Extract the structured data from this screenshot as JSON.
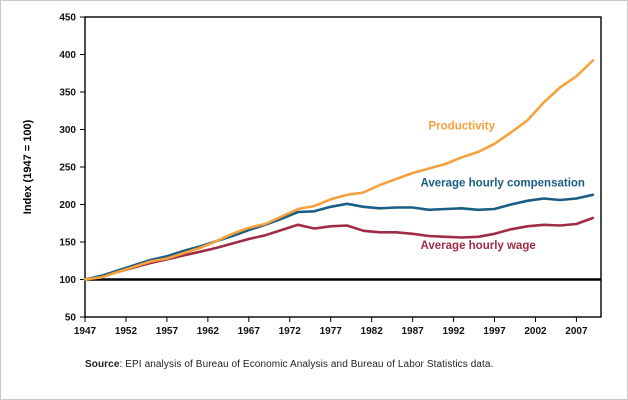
{
  "chart_data": {
    "type": "line",
    "title": "",
    "ylabel": "Index (1947 = 100)",
    "ylim": [
      50,
      450
    ],
    "ytick_step": 50,
    "yticks": [
      50,
      100,
      150,
      200,
      250,
      300,
      350,
      400,
      450
    ],
    "xlim": [
      1947,
      2010
    ],
    "xticks": [
      1947,
      1952,
      1957,
      1962,
      1967,
      1972,
      1977,
      1982,
      1987,
      1992,
      1997,
      2002,
      2007
    ],
    "x": [
      1947,
      1949,
      1951,
      1953,
      1955,
      1957,
      1959,
      1961,
      1963,
      1965,
      1967,
      1969,
      1971,
      1973,
      1975,
      1977,
      1979,
      1981,
      1983,
      1985,
      1987,
      1989,
      1991,
      1993,
      1995,
      1997,
      1999,
      2001,
      2003,
      2005,
      2007,
      2009
    ],
    "series": [
      {
        "name": "Average hourly wage",
        "color": "#A12C47",
        "values": [
          100,
          104,
          110,
          116,
          122,
          127,
          132,
          137,
          142,
          148,
          154,
          159,
          166,
          173,
          168,
          171,
          172,
          165,
          163,
          163,
          161,
          158,
          157,
          156,
          157,
          161,
          167,
          171,
          173,
          172,
          174,
          182
        ]
      },
      {
        "name": "Average hourly compensation",
        "color": "#1B5E85",
        "values": [
          100,
          105,
          112,
          119,
          126,
          131,
          138,
          144,
          151,
          158,
          166,
          173,
          181,
          190,
          191,
          197,
          201,
          197,
          195,
          196,
          196,
          193,
          194,
          195,
          193,
          194,
          200,
          205,
          208,
          206,
          208,
          213
        ]
      },
      {
        "name": "Productivity",
        "color": "#F6A13C",
        "values": [
          100,
          103,
          110,
          117,
          124,
          128,
          135,
          142,
          151,
          161,
          169,
          174,
          184,
          194,
          198,
          207,
          213,
          216,
          226,
          234,
          242,
          248,
          254,
          263,
          270,
          281,
          296,
          312,
          336,
          356,
          371,
          392
        ]
      }
    ],
    "baseline": {
      "value": 100,
      "color": "#000000"
    },
    "annotations": [
      {
        "text": "Productivity",
        "x": 1993,
        "y": 300,
        "color": "#F6A13C"
      },
      {
        "text": "Average hourly compensation",
        "x": 1998,
        "y": 224,
        "color": "#1B5E85"
      },
      {
        "text": "Average hourly wage",
        "x": 1995,
        "y": 141,
        "color": "#A12C47"
      }
    ],
    "grid": false,
    "legend_position": "inline-labels"
  },
  "source": {
    "prefix": "Source",
    "text": ": EPI analysis of Bureau of Economic Analysis and Bureau of Labor Statistics data."
  }
}
